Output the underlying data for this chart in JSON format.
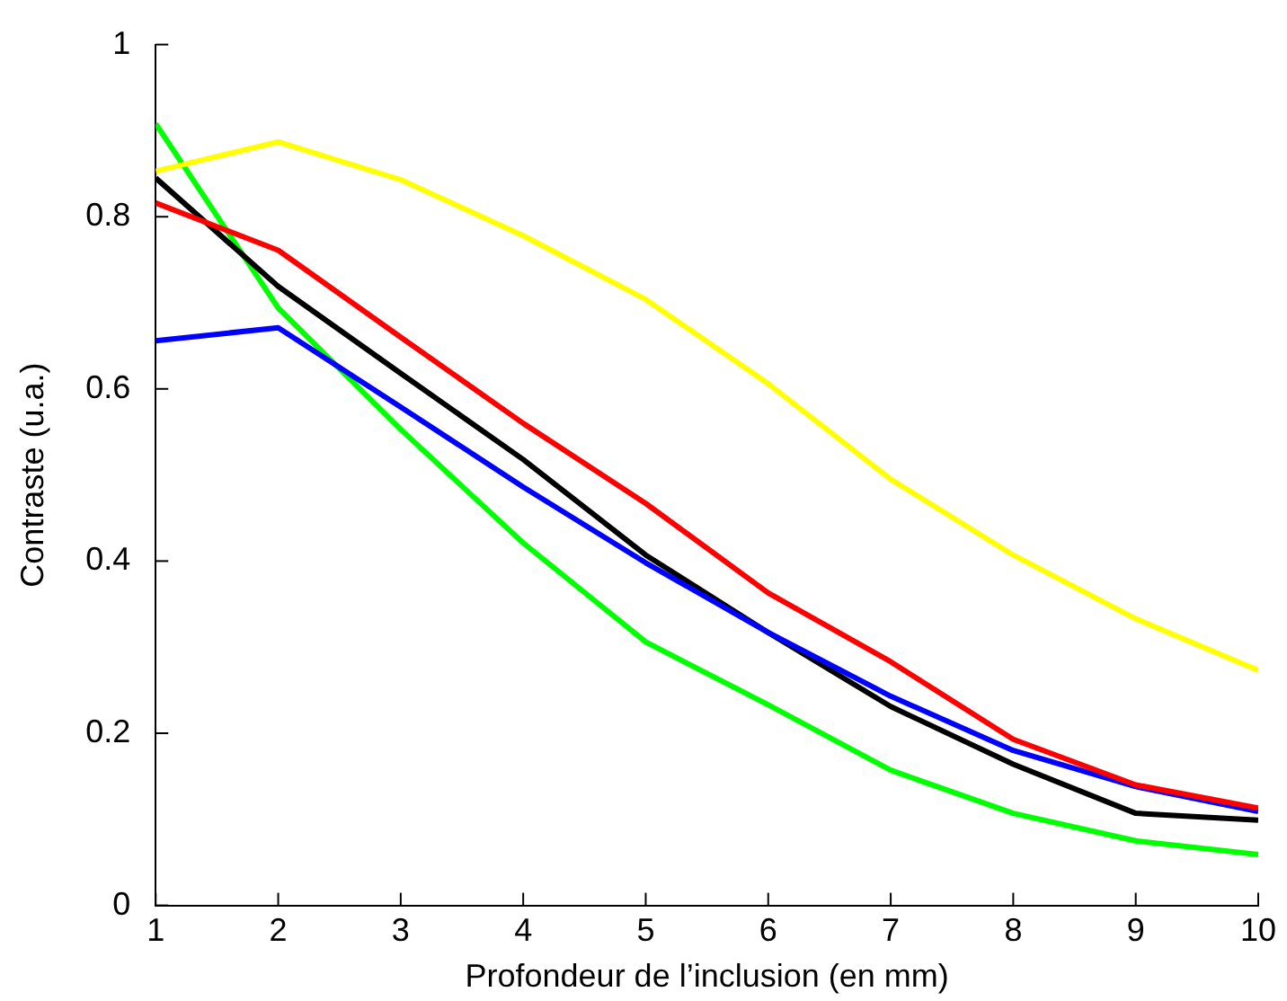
{
  "chart_data": {
    "type": "line",
    "xlabel": "Profondeur de l’inclusion (en mm)",
    "ylabel": "Contraste (u.a.)",
    "x": [
      1,
      2,
      3,
      4,
      5,
      6,
      7,
      8,
      9,
      10
    ],
    "xlim": [
      1,
      10
    ],
    "xticks": [
      1,
      2,
      3,
      4,
      5,
      6,
      7,
      8,
      9,
      10
    ],
    "ylim": [
      0,
      1
    ],
    "yticks": [
      0,
      0.2,
      0.4,
      0.6,
      0.8,
      1
    ],
    "grid": false,
    "legend": false,
    "marker": "none",
    "line_style": "solid",
    "series": [
      {
        "color": "#ffff00",
        "values": [
          0.853,
          0.887,
          0.843,
          0.778,
          0.704,
          0.606,
          0.495,
          0.407,
          0.333,
          0.273
        ]
      },
      {
        "color": "#ff0000",
        "values": [
          0.816,
          0.761,
          0.66,
          0.56,
          0.467,
          0.363,
          0.283,
          0.193,
          0.14,
          0.113
        ]
      },
      {
        "color": "#0000ff",
        "values": [
          0.656,
          0.671,
          0.579,
          0.486,
          0.398,
          0.317,
          0.243,
          0.18,
          0.138,
          0.109
        ]
      },
      {
        "color": "#000000",
        "values": [
          0.845,
          0.719,
          0.618,
          0.518,
          0.407,
          0.317,
          0.231,
          0.164,
          0.107,
          0.099
        ]
      },
      {
        "color": "#00ff00",
        "values": [
          0.908,
          0.694,
          0.553,
          0.421,
          0.306,
          0.233,
          0.157,
          0.107,
          0.075,
          0.059
        ]
      }
    ]
  }
}
